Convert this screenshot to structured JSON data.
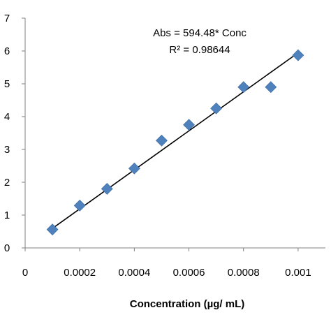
{
  "chart_data": {
    "type": "scatter",
    "title": "",
    "xlabel": "Concentration (µg/ mL)",
    "ylabel": "",
    "xlim": [
      0,
      0.0011
    ],
    "ylim": [
      0,
      7
    ],
    "grid": false,
    "x_ticks": [
      "0",
      "0.0002",
      "0.0004",
      "0.0006",
      "0.0008",
      "0.001"
    ],
    "y_ticks": [
      "0",
      "1",
      "2",
      "3",
      "4",
      "5",
      "6",
      "7"
    ],
    "series": [
      {
        "x": [
          0.0001,
          0.0002,
          0.0003,
          0.0004,
          0.0005,
          0.0006,
          0.0007,
          0.0008,
          0.0009,
          0.001
        ],
        "y": [
          0.56,
          1.29,
          1.8,
          2.42,
          3.27,
          3.75,
          4.25,
          4.9,
          4.9,
          5.87
        ],
        "marker": "diamond",
        "color": "#4f81bd"
      }
    ],
    "trendline": {
      "x": [
        0.0001,
        0.001
      ],
      "y": [
        0.59448,
        5.9448
      ],
      "color": "#000000"
    },
    "annotations": {
      "equation": "Abs = 594.48* Conc",
      "r_squared": "R² = 0.98644"
    }
  }
}
